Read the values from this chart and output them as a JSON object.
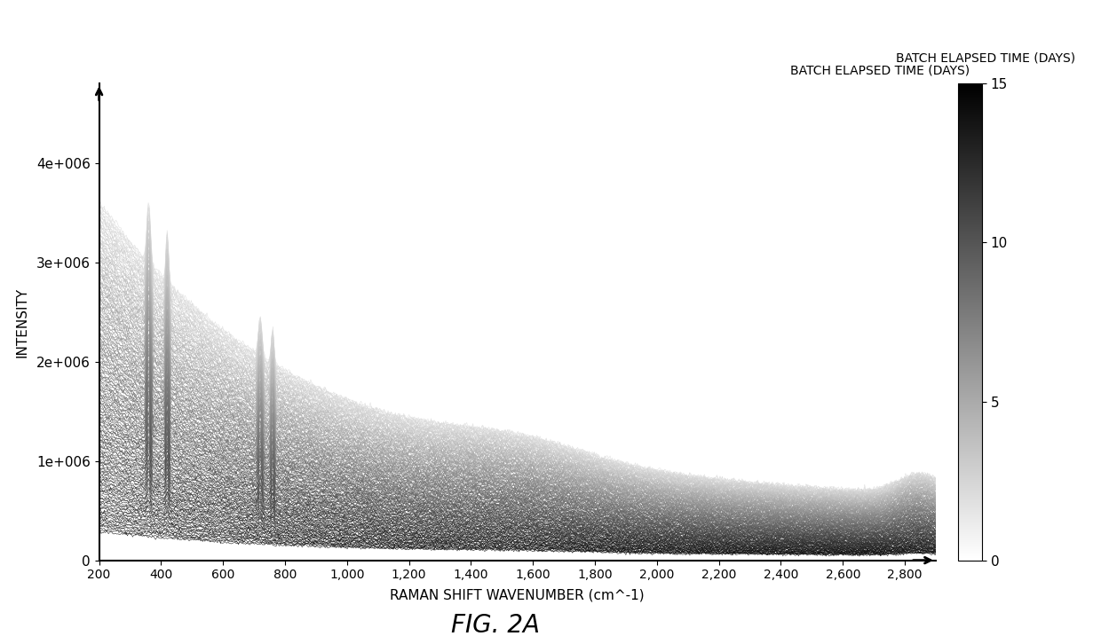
{
  "title": "FIG. 2A",
  "xlabel": "RAMAN SHIFT WAVENUMBER (cm^-1)",
  "ylabel": "INTENSITY",
  "colorbar_label": "BATCH ELAPSED TIME (DAYS)",
  "x_min": 200,
  "x_max": 2900,
  "y_min": 0,
  "y_max": 4800000,
  "colorbar_min": 0,
  "colorbar_max": 15,
  "colorbar_ticks": [
    0,
    5,
    10,
    15
  ],
  "n_spectra": 200,
  "background_color": "#ffffff",
  "yticks": [
    0,
    1000000,
    2000000,
    3000000,
    4000000
  ],
  "ytick_labels": [
    "0",
    "1e+006",
    "2e+006",
    "3e+006",
    "4e+006"
  ],
  "xticks": [
    200,
    400,
    600,
    800,
    1000,
    1200,
    1400,
    1600,
    1800,
    2000,
    2200,
    2400,
    2600,
    2800
  ],
  "xtick_labels": [
    "200",
    "400",
    "600",
    "800",
    "1,000",
    "1,200",
    "1,400",
    "1,600",
    "1,800",
    "2,000",
    "2,200",
    "2,400",
    "2,600",
    "2,800"
  ]
}
